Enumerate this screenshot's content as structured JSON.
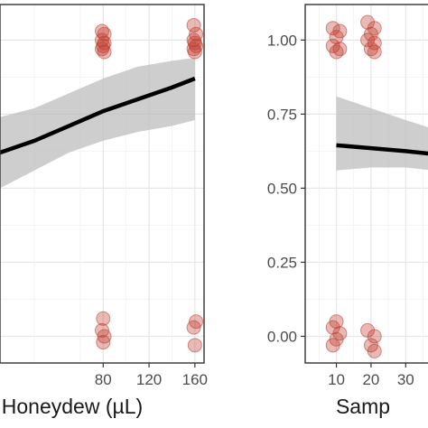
{
  "chart_data": [
    {
      "type": "scatter",
      "xlabel": "Honeydew (µL)",
      "ylabel": "",
      "xlim": [
        -10,
        168
      ],
      "ylim": [
        -0.09,
        1.12
      ],
      "grid": true,
      "x_ticks": [
        80,
        120,
        160
      ],
      "y_ticks": [
        0.0,
        0.25,
        0.5,
        0.75,
        1.0
      ],
      "colors": {
        "points": "#c0392b",
        "line": "#000000",
        "band": "#bdbdbd"
      },
      "points": [
        {
          "x": 79,
          "y": 1.03
        },
        {
          "x": 81,
          "y": 1.02
        },
        {
          "x": 79,
          "y": 1.0
        },
        {
          "x": 81,
          "y": 0.99
        },
        {
          "x": 80,
          "y": 0.98
        },
        {
          "x": 79,
          "y": 0.97
        },
        {
          "x": 81,
          "y": 0.96
        },
        {
          "x": 159,
          "y": 1.05
        },
        {
          "x": 161,
          "y": 1.02
        },
        {
          "x": 159,
          "y": 1.0
        },
        {
          "x": 160,
          "y": 0.99
        },
        {
          "x": 161,
          "y": 0.98
        },
        {
          "x": 159,
          "y": 0.97
        },
        {
          "x": 160,
          "y": 0.96
        },
        {
          "x": 80,
          "y": 0.06
        },
        {
          "x": 79,
          "y": 0.02
        },
        {
          "x": 81,
          "y": 0.0
        },
        {
          "x": 80,
          "y": -0.02
        },
        {
          "x": 161,
          "y": 0.05
        },
        {
          "x": 159,
          "y": 0.03
        },
        {
          "x": 160,
          "y": -0.03
        }
      ],
      "fit": {
        "x": [
          -10,
          20,
          50,
          80,
          110,
          140,
          160
        ],
        "y": [
          0.62,
          0.66,
          0.71,
          0.76,
          0.8,
          0.84,
          0.87
        ]
      },
      "band_lower": {
        "x": [
          -10,
          20,
          50,
          80,
          110,
          140,
          160
        ],
        "y": [
          0.5,
          0.56,
          0.62,
          0.66,
          0.69,
          0.71,
          0.73
        ]
      },
      "band_upper": {
        "x": [
          -10,
          20,
          50,
          80,
          110,
          140,
          160
        ],
        "y": [
          0.74,
          0.77,
          0.82,
          0.87,
          0.91,
          0.93,
          0.94
        ]
      }
    },
    {
      "type": "scatter",
      "xlabel": "Samp",
      "ylabel": "",
      "xlim": [
        1,
        38
      ],
      "ylim": [
        -0.09,
        1.12
      ],
      "grid": true,
      "x_ticks": [
        10,
        20,
        30
      ],
      "x_tick_labels": [
        "10",
        "20",
        "30"
      ],
      "y_ticks": [
        0.0,
        0.25,
        0.5,
        0.75,
        1.0
      ],
      "y_tick_labels": [
        "0.00",
        "0.25",
        "0.50",
        "0.75",
        "1.00"
      ],
      "colors": {
        "points": "#c0392b",
        "line": "#000000",
        "band": "#bdbdbd"
      },
      "points": [
        {
          "x": 9,
          "y": 1.04
        },
        {
          "x": 11,
          "y": 1.03
        },
        {
          "x": 10,
          "y": 1.01
        },
        {
          "x": 9,
          "y": 0.98
        },
        {
          "x": 11,
          "y": 0.97
        },
        {
          "x": 10,
          "y": 0.96
        },
        {
          "x": 19,
          "y": 1.06
        },
        {
          "x": 21,
          "y": 1.04
        },
        {
          "x": 20,
          "y": 1.02
        },
        {
          "x": 19,
          "y": 1.0
        },
        {
          "x": 21,
          "y": 0.99
        },
        {
          "x": 20,
          "y": 0.97
        },
        {
          "x": 21,
          "y": 0.96
        },
        {
          "x": 10,
          "y": 0.05
        },
        {
          "x": 9,
          "y": 0.03
        },
        {
          "x": 11,
          "y": 0.01
        },
        {
          "x": 10,
          "y": -0.01
        },
        {
          "x": 9,
          "y": -0.03
        },
        {
          "x": 19,
          "y": 0.02
        },
        {
          "x": 21,
          "y": 0.0
        },
        {
          "x": 20,
          "y": -0.03
        },
        {
          "x": 21,
          "y": -0.05
        }
      ],
      "fit": {
        "x": [
          10,
          20,
          30,
          38
        ],
        "y": [
          0.645,
          0.635,
          0.625,
          0.615
        ]
      },
      "band_lower": {
        "x": [
          10,
          20,
          30,
          38
        ],
        "y": [
          0.56,
          0.57,
          0.57,
          0.56
        ]
      },
      "band_upper": {
        "x": [
          10,
          20,
          30,
          38
        ],
        "y": [
          0.81,
          0.77,
          0.73,
          0.7
        ]
      }
    }
  ]
}
